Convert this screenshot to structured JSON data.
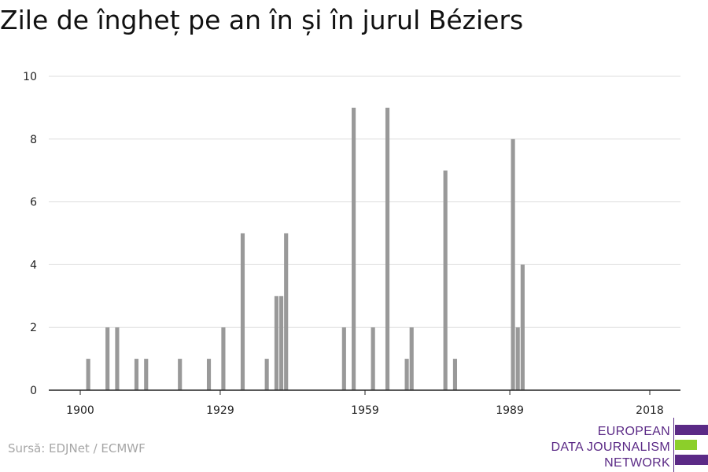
{
  "title": "Zile de îngheț pe an în și în jurul Béziers",
  "source": "Sursă: EDJNet / ECMWF",
  "logo": {
    "lines": [
      "EUROPEAN",
      "DATA JOURNALISM",
      "NETWORK"
    ],
    "bar_colors": [
      "#5b2a86",
      "#8ccf2a",
      "#5b2a86"
    ]
  },
  "colors": {
    "bar": "#999999",
    "grid": "#dddddd",
    "axis": "#222222"
  },
  "chart_data": {
    "type": "bar",
    "title": "Zile de îngheț pe an în și în jurul Béziers",
    "xlabel": "",
    "ylabel": "",
    "xlim": [
      1900,
      2018
    ],
    "ylim": [
      0,
      10
    ],
    "x_ticks": [
      1900,
      1929,
      1959,
      1989,
      2018
    ],
    "y_ticks": [
      0,
      2,
      4,
      6,
      8,
      10
    ],
    "grid": true,
    "x": [
      1900,
      1901,
      1902,
      1903,
      1904,
      1905,
      1906,
      1907,
      1908,
      1909,
      1910,
      1911,
      1912,
      1913,
      1914,
      1915,
      1916,
      1917,
      1918,
      1919,
      1920,
      1921,
      1922,
      1923,
      1924,
      1925,
      1926,
      1927,
      1928,
      1929,
      1930,
      1931,
      1932,
      1933,
      1934,
      1935,
      1936,
      1937,
      1938,
      1939,
      1940,
      1941,
      1942,
      1943,
      1944,
      1945,
      1946,
      1947,
      1948,
      1949,
      1950,
      1951,
      1952,
      1953,
      1954,
      1955,
      1956,
      1957,
      1958,
      1959,
      1960,
      1961,
      1962,
      1963,
      1964,
      1965,
      1966,
      1967,
      1968,
      1969,
      1970,
      1971,
      1972,
      1973,
      1974,
      1975,
      1976,
      1977,
      1978,
      1979,
      1980,
      1981,
      1982,
      1983,
      1984,
      1985,
      1986,
      1987,
      1988,
      1989,
      1990,
      1991,
      1992,
      1993,
      1994,
      1995,
      1996,
      1997,
      1998,
      1999,
      2000,
      2001,
      2002,
      2003,
      2004,
      2005,
      2006,
      2007,
      2008,
      2009,
      2010,
      2011,
      2012,
      2013,
      2014,
      2015,
      2016,
      2017,
      2018
    ],
    "values": [
      0,
      1,
      0,
      0,
      0,
      2,
      0,
      2,
      0,
      0,
      0,
      1,
      0,
      1,
      0,
      0,
      0,
      0,
      0,
      0,
      1,
      0,
      0,
      0,
      0,
      0,
      1,
      0,
      0,
      2,
      0,
      0,
      0,
      5,
      0,
      0,
      0,
      0,
      1,
      0,
      3,
      3,
      5,
      0,
      0,
      0,
      0,
      0,
      0,
      0,
      0,
      0,
      0,
      0,
      2,
      0,
      9,
      0,
      0,
      0,
      2,
      0,
      0,
      9,
      0,
      0,
      0,
      1,
      2,
      0,
      0,
      0,
      0,
      0,
      0,
      7,
      0,
      1,
      0,
      0,
      0,
      0,
      0,
      0,
      0,
      0,
      0,
      0,
      0,
      8,
      2,
      4,
      0,
      0,
      0,
      0,
      0,
      0,
      0,
      0,
      0,
      0,
      0,
      0,
      0,
      0,
      0,
      0,
      0,
      0,
      0,
      0,
      0,
      0,
      0,
      0,
      0,
      0,
      0
    ]
  }
}
